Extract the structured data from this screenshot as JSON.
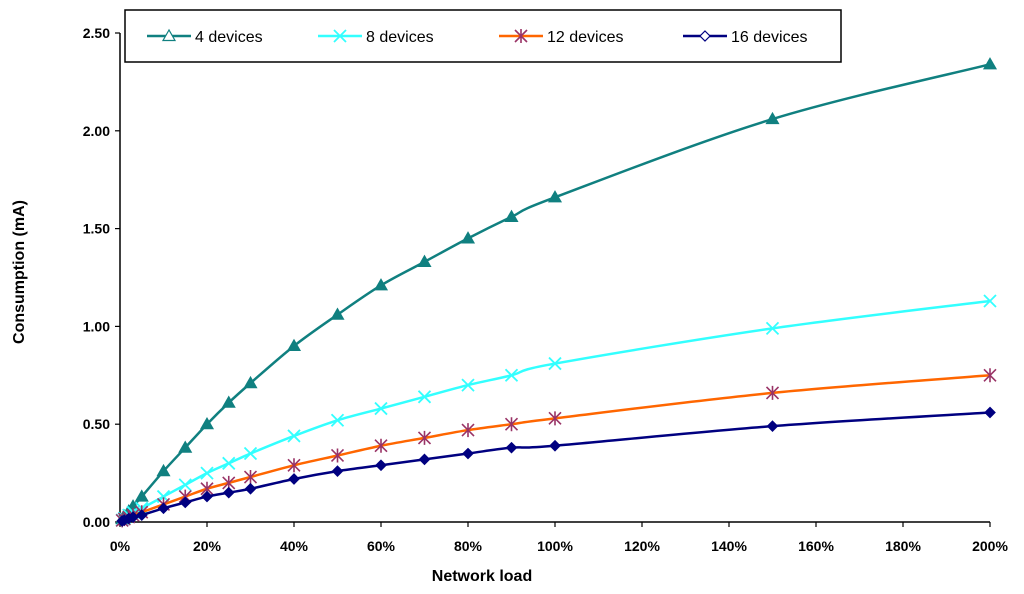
{
  "chart_data": {
    "type": "line",
    "title": "",
    "xlabel": "Network load",
    "ylabel": "Consumption (mA)",
    "xlim": [
      0,
      200
    ],
    "ylim": [
      0,
      2.5
    ],
    "xticks": [
      0,
      20,
      40,
      60,
      80,
      100,
      120,
      140,
      160,
      180,
      200
    ],
    "xtick_labels": [
      "0%",
      "20%",
      "40%",
      "60%",
      "80%",
      "100%",
      "120%",
      "140%",
      "160%",
      "180%",
      "200%"
    ],
    "yticks": [
      0,
      0.5,
      1.0,
      1.5,
      2.0,
      2.5
    ],
    "ytick_labels": [
      "0.00",
      "0.50",
      "1.00",
      "1.50",
      "2.00",
      "2.50"
    ],
    "grid": false,
    "legend_position": "top",
    "x": [
      0.5,
      1,
      2,
      3,
      5,
      10,
      15,
      20,
      25,
      30,
      40,
      50,
      60,
      70,
      80,
      90,
      100,
      150,
      200
    ],
    "series": [
      {
        "name": "4 devices",
        "color": "#108080",
        "marker": "triangle",
        "values": [
          0.015,
          0.03,
          0.055,
          0.08,
          0.13,
          0.26,
          0.38,
          0.5,
          0.61,
          0.71,
          0.9,
          1.06,
          1.21,
          1.33,
          1.45,
          1.56,
          1.66,
          2.06,
          2.34
        ]
      },
      {
        "name": "8  devices",
        "color": "#33FFFF",
        "marker": "x",
        "values": [
          0.01,
          0.02,
          0.035,
          0.05,
          0.07,
          0.13,
          0.19,
          0.25,
          0.3,
          0.35,
          0.44,
          0.52,
          0.58,
          0.64,
          0.7,
          0.75,
          0.81,
          0.99,
          1.13
        ]
      },
      {
        "name": "12 devices",
        "color": "#FF6600",
        "marker_color": "#993366",
        "marker": "star",
        "values": [
          0.008,
          0.015,
          0.025,
          0.035,
          0.05,
          0.09,
          0.13,
          0.17,
          0.2,
          0.23,
          0.29,
          0.34,
          0.39,
          0.43,
          0.47,
          0.5,
          0.53,
          0.66,
          0.75
        ]
      },
      {
        "name": "16  devices",
        "color": "#000080",
        "marker": "diamond",
        "values": [
          0.005,
          0.01,
          0.018,
          0.025,
          0.035,
          0.07,
          0.1,
          0.13,
          0.15,
          0.17,
          0.22,
          0.26,
          0.29,
          0.32,
          0.35,
          0.38,
          0.39,
          0.49,
          0.56
        ]
      }
    ]
  }
}
